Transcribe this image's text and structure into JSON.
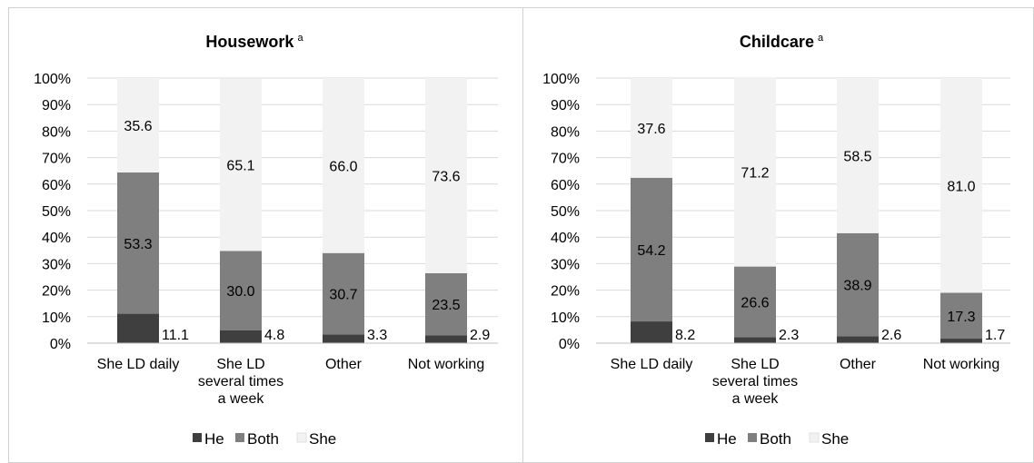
{
  "colors": {
    "He": "#3f3f3f",
    "Both": "#7f7f7f",
    "She": "#f2f2f2",
    "grid": "#d9d9d9",
    "text": "#000000"
  },
  "legend": [
    "He",
    "Both",
    "She"
  ],
  "y_tick_labels": [
    "0%",
    "10%",
    "20%",
    "30%",
    "40%",
    "50%",
    "60%",
    "70%",
    "80%",
    "90%",
    "100%"
  ],
  "chart_data": [
    {
      "type": "bar",
      "stacked": true,
      "title": "Housework",
      "title_superscript": "a",
      "categories": [
        [
          "She LD daily"
        ],
        [
          "She LD",
          "several times",
          "a week"
        ],
        [
          "Other"
        ],
        [
          "Not working"
        ]
      ],
      "series": [
        {
          "name": "He",
          "values": [
            11.1,
            4.8,
            3.3,
            2.9
          ],
          "labels": [
            "11.1",
            "4.8",
            "3.3",
            "2.9"
          ]
        },
        {
          "name": "Both",
          "values": [
            53.3,
            30.0,
            30.7,
            23.5
          ],
          "labels": [
            "53.3",
            "30.0",
            "30.7",
            "23.5"
          ]
        },
        {
          "name": "She",
          "values": [
            35.6,
            65.1,
            66.0,
            73.6
          ],
          "labels": [
            "35.6",
            "65.1",
            "66.0",
            "73.6"
          ]
        }
      ],
      "ylim": [
        0,
        100
      ],
      "grid": true,
      "legend_position": "bottom"
    },
    {
      "type": "bar",
      "stacked": true,
      "title": "Childcare",
      "title_superscript": "a",
      "categories": [
        [
          "She LD daily"
        ],
        [
          "She LD",
          "several times",
          "a week"
        ],
        [
          "Other"
        ],
        [
          "Not working"
        ]
      ],
      "series": [
        {
          "name": "He",
          "values": [
            8.2,
            2.3,
            2.6,
            1.7
          ],
          "labels": [
            "8.2",
            "2.3",
            "2.6",
            "1.7"
          ]
        },
        {
          "name": "Both",
          "values": [
            54.2,
            26.6,
            38.9,
            17.3
          ],
          "labels": [
            "54.2",
            "26.6",
            "38.9",
            "17.3"
          ]
        },
        {
          "name": "She",
          "values": [
            37.6,
            71.2,
            58.5,
            81.0
          ],
          "labels": [
            "37.6",
            "71.2",
            "58.5",
            "81.0"
          ]
        }
      ],
      "ylim": [
        0,
        100
      ],
      "grid": true,
      "legend_position": "bottom"
    }
  ]
}
